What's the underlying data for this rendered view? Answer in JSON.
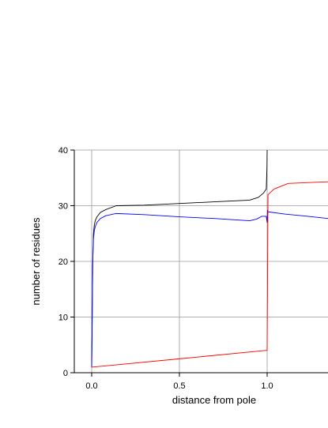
{
  "chart_data": {
    "type": "line",
    "title": "",
    "xlabel": "distance from pole",
    "ylabel": "number of residues",
    "xlim": [
      -0.1,
      1.35
    ],
    "ylim": [
      0,
      40
    ],
    "x_ticks": [
      0.0,
      0.5,
      1.0
    ],
    "x_tick_labels": [
      "0.0",
      "0.5",
      "1.0"
    ],
    "y_ticks": [
      0,
      10,
      20,
      30,
      40
    ],
    "y_tick_labels": [
      "0",
      "10",
      "20",
      "30",
      "40"
    ],
    "grid": true,
    "legend": "none",
    "series": [
      {
        "color": "#000000",
        "x": [
          0.0,
          0.003,
          0.006,
          0.01,
          0.015,
          0.02,
          0.03,
          0.05,
          0.08,
          0.14,
          0.3,
          0.5,
          0.7,
          0.9,
          0.95,
          0.98,
          0.995,
          0.999,
          1.0
        ],
        "y": [
          1,
          10,
          20,
          25,
          26.5,
          27.3,
          28,
          28.8,
          29.3,
          30,
          30.1,
          30.4,
          30.7,
          31,
          31.5,
          32.3,
          33,
          37,
          40
        ]
      },
      {
        "color": "#0000ff",
        "x": [
          0.0,
          0.003,
          0.006,
          0.01,
          0.015,
          0.02,
          0.03,
          0.05,
          0.08,
          0.14,
          0.3,
          0.5,
          0.7,
          0.9,
          0.94,
          0.97,
          0.995,
          1.0,
          1.002,
          1.005,
          1.1,
          1.2,
          1.35
        ],
        "y": [
          1,
          10,
          20,
          24,
          25.5,
          26.2,
          27,
          27.7,
          28.2,
          28.6,
          28.4,
          28.0,
          27.7,
          27.3,
          27.6,
          28.1,
          28.1,
          27.0,
          29.2,
          28.9,
          28.5,
          28.2,
          27.7
        ],
        "hidden_points": [
          0.3,
          0.5,
          0.7
        ]
      },
      {
        "color": "#ff0000",
        "x": [
          0.0,
          0.5,
          0.99,
          1.0,
          1.005,
          1.04,
          1.12,
          1.2,
          1.35
        ],
        "y": [
          1,
          2.5,
          4,
          4,
          32,
          33,
          34,
          34.1,
          34.3
        ]
      }
    ]
  }
}
